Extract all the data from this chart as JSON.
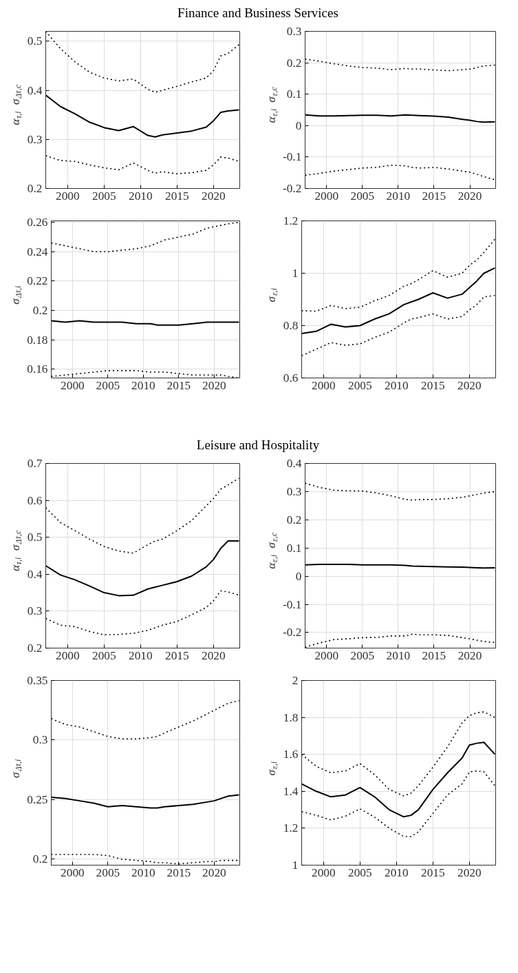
{
  "chart_data": [
    {
      "type": "line",
      "title": "Finance and Business Services",
      "ylabel": "α$_{τ,i}$σ$_{Δτ,c}$",
      "x": [
        1997,
        1999,
        2001,
        2003,
        2005,
        2007,
        2009,
        2011,
        2012,
        2013,
        2015,
        2017,
        2019,
        2020,
        2021,
        2022,
        2023.5
      ],
      "xlim": [
        1997,
        2023.6
      ],
      "xticks": [
        2000,
        2005,
        2010,
        2015,
        2020
      ],
      "ylim": [
        0.2,
        0.52
      ],
      "yticks": [
        0.2,
        0.3,
        0.4,
        0.5
      ],
      "grid": true,
      "series": [
        {
          "color": "#000000",
          "line_style": "dotted",
          "values": [
            0.52,
            0.485,
            0.458,
            0.437,
            0.425,
            0.419,
            0.423,
            0.402,
            0.396,
            0.4,
            0.408,
            0.417,
            0.425,
            0.44,
            0.47,
            0.475,
            0.493
          ]
        },
        {
          "color": "#000000",
          "line_style": "solid",
          "values": [
            0.39,
            0.367,
            0.352,
            0.335,
            0.324,
            0.318,
            0.326,
            0.308,
            0.305,
            0.309,
            0.313,
            0.317,
            0.325,
            0.338,
            0.355,
            0.358,
            0.36
          ]
        },
        {
          "color": "#000000",
          "line_style": "dotted",
          "values": [
            0.267,
            0.257,
            0.255,
            0.248,
            0.242,
            0.238,
            0.252,
            0.237,
            0.231,
            0.234,
            0.23,
            0.232,
            0.237,
            0.248,
            0.264,
            0.262,
            0.255
          ]
        }
      ]
    },
    {
      "type": "line",
      "ylabel": "α$_{ε,i}$σ$_{ε,c}$",
      "x": [
        1997,
        1999,
        2001,
        2003,
        2005,
        2007,
        2009,
        2011,
        2012,
        2013,
        2015,
        2017,
        2019,
        2020,
        2021,
        2022,
        2023.5
      ],
      "xlim": [
        1997,
        2023.6
      ],
      "xticks": [
        2000,
        2005,
        2010,
        2015,
        2020
      ],
      "ylim": [
        -0.2,
        0.3
      ],
      "yticks": [
        -0.2,
        -0.1,
        0,
        0.1,
        0.2,
        0.3
      ],
      "grid": true,
      "series": [
        {
          "color": "#000000",
          "line_style": "dotted",
          "values": [
            0.212,
            0.205,
            0.197,
            0.19,
            0.185,
            0.183,
            0.178,
            0.182,
            0.18,
            0.18,
            0.177,
            0.175,
            0.178,
            0.18,
            0.185,
            0.19,
            0.193
          ]
        },
        {
          "color": "#000000",
          "line_style": "solid",
          "values": [
            0.034,
            0.031,
            0.031,
            0.032,
            0.033,
            0.033,
            0.031,
            0.034,
            0.033,
            0.032,
            0.03,
            0.027,
            0.02,
            0.017,
            0.013,
            0.011,
            0.012
          ]
        },
        {
          "color": "#000000",
          "line_style": "dotted",
          "values": [
            -0.158,
            -0.152,
            -0.145,
            -0.14,
            -0.135,
            -0.133,
            -0.126,
            -0.128,
            -0.133,
            -0.135,
            -0.133,
            -0.138,
            -0.145,
            -0.148,
            -0.155,
            -0.163,
            -0.172
          ]
        }
      ]
    },
    {
      "type": "line",
      "ylabel": "σ$_{Δτ,i}$",
      "x": [
        1997,
        1999,
        2001,
        2003,
        2005,
        2007,
        2009,
        2011,
        2012,
        2013,
        2015,
        2017,
        2019,
        2020,
        2021,
        2022,
        2023.5
      ],
      "xlim": [
        1997,
        2023.6
      ],
      "xticks": [
        2000,
        2005,
        2010,
        2015,
        2020
      ],
      "ylim": [
        0.154,
        0.261
      ],
      "yticks": [
        0.16,
        0.18,
        0.2,
        0.22,
        0.24,
        0.26
      ],
      "grid": true,
      "series": [
        {
          "color": "#000000",
          "line_style": "dotted",
          "values": [
            0.246,
            0.244,
            0.242,
            0.24,
            0.24,
            0.241,
            0.242,
            0.244,
            0.246,
            0.248,
            0.25,
            0.252,
            0.256,
            0.257,
            0.258,
            0.259,
            0.26
          ]
        },
        {
          "color": "#000000",
          "line_style": "solid",
          "values": [
            0.193,
            0.192,
            0.193,
            0.192,
            0.192,
            0.192,
            0.191,
            0.191,
            0.19,
            0.19,
            0.19,
            0.191,
            0.192,
            0.192,
            0.192,
            0.192,
            0.192
          ]
        },
        {
          "color": "#000000",
          "line_style": "dotted",
          "values": [
            0.155,
            0.156,
            0.157,
            0.158,
            0.159,
            0.159,
            0.159,
            0.158,
            0.158,
            0.158,
            0.157,
            0.156,
            0.156,
            0.156,
            0.156,
            0.155,
            0.154
          ]
        }
      ]
    },
    {
      "type": "line",
      "ylabel": "σ$_{ε,i}$",
      "x": [
        1997,
        1999,
        2001,
        2003,
        2005,
        2007,
        2009,
        2011,
        2012,
        2013,
        2015,
        2017,
        2019,
        2020,
        2021,
        2022,
        2023.5
      ],
      "xlim": [
        1997,
        2023.6
      ],
      "xticks": [
        2000,
        2005,
        2010,
        2015,
        2020
      ],
      "ylim": [
        0.6,
        1.2
      ],
      "yticks": [
        0.6,
        0.8,
        1,
        1.2
      ],
      "grid": true,
      "series": [
        {
          "color": "#000000",
          "line_style": "dotted",
          "values": [
            0.857,
            0.855,
            0.877,
            0.865,
            0.87,
            0.895,
            0.915,
            0.95,
            0.96,
            0.975,
            1.01,
            0.985,
            1.0,
            1.03,
            1.05,
            1.08,
            1.13
          ]
        },
        {
          "color": "#000000",
          "line_style": "solid",
          "values": [
            0.77,
            0.778,
            0.805,
            0.795,
            0.8,
            0.825,
            0.845,
            0.88,
            0.89,
            0.9,
            0.925,
            0.905,
            0.92,
            0.945,
            0.97,
            1.0,
            1.02
          ]
        },
        {
          "color": "#000000",
          "line_style": "dotted",
          "values": [
            0.685,
            0.71,
            0.735,
            0.725,
            0.73,
            0.755,
            0.775,
            0.81,
            0.825,
            0.83,
            0.845,
            0.825,
            0.835,
            0.86,
            0.88,
            0.91,
            0.915
          ]
        }
      ]
    },
    {
      "type": "line",
      "title": "Leisure and Hospitality",
      "ylabel": "α$_{τ,i}$σ$_{Δτ,c}$",
      "x": [
        1997,
        1999,
        2001,
        2003,
        2005,
        2007,
        2009,
        2011,
        2012,
        2013,
        2015,
        2017,
        2019,
        2020,
        2021,
        2022,
        2023.5
      ],
      "xlim": [
        1997,
        2023.6
      ],
      "xticks": [
        2000,
        2005,
        2010,
        2015,
        2020
      ],
      "ylim": [
        0.2,
        0.7
      ],
      "yticks": [
        0.2,
        0.3,
        0.4,
        0.5,
        0.6,
        0.7
      ],
      "grid": true,
      "series": [
        {
          "color": "#000000",
          "line_style": "dotted",
          "values": [
            0.58,
            0.54,
            0.518,
            0.495,
            0.475,
            0.463,
            0.457,
            0.48,
            0.49,
            0.495,
            0.518,
            0.545,
            0.585,
            0.605,
            0.63,
            0.642,
            0.66
          ]
        },
        {
          "color": "#000000",
          "line_style": "solid",
          "values": [
            0.423,
            0.398,
            0.385,
            0.368,
            0.35,
            0.342,
            0.343,
            0.36,
            0.365,
            0.37,
            0.38,
            0.395,
            0.42,
            0.44,
            0.47,
            0.49,
            0.49
          ]
        },
        {
          "color": "#000000",
          "line_style": "dotted",
          "values": [
            0.28,
            0.262,
            0.258,
            0.245,
            0.236,
            0.237,
            0.24,
            0.248,
            0.255,
            0.262,
            0.272,
            0.29,
            0.31,
            0.328,
            0.355,
            0.352,
            0.343
          ]
        }
      ]
    },
    {
      "type": "line",
      "ylabel": "α$_{ε,i}$σ$_{ε,c}$",
      "x": [
        1997,
        1999,
        2001,
        2003,
        2005,
        2007,
        2009,
        2011,
        2012,
        2013,
        2015,
        2017,
        2019,
        2020,
        2021,
        2022,
        2023.5
      ],
      "xlim": [
        1997,
        2023.6
      ],
      "xticks": [
        2000,
        2005,
        2010,
        2015,
        2020
      ],
      "ylim": [
        -0.255,
        0.4
      ],
      "yticks": [
        -0.2,
        -0.1,
        0,
        0.1,
        0.2,
        0.3,
        0.4
      ],
      "grid": true,
      "series": [
        {
          "color": "#000000",
          "line_style": "dotted",
          "values": [
            0.33,
            0.315,
            0.305,
            0.303,
            0.302,
            0.295,
            0.285,
            0.272,
            0.27,
            0.272,
            0.272,
            0.275,
            0.28,
            0.285,
            0.29,
            0.295,
            0.3
          ]
        },
        {
          "color": "#000000",
          "line_style": "solid",
          "values": [
            0.04,
            0.042,
            0.042,
            0.042,
            0.04,
            0.04,
            0.04,
            0.038,
            0.036,
            0.035,
            0.034,
            0.033,
            0.032,
            0.031,
            0.03,
            0.029,
            0.03
          ]
        },
        {
          "color": "#000000",
          "line_style": "dotted",
          "values": [
            -0.252,
            -0.237,
            -0.225,
            -0.222,
            -0.218,
            -0.217,
            -0.212,
            -0.212,
            -0.205,
            -0.208,
            -0.208,
            -0.21,
            -0.218,
            -0.222,
            -0.227,
            -0.232,
            -0.235
          ]
        }
      ]
    },
    {
      "type": "line",
      "ylabel": "σ$_{Δτ,i}$",
      "x": [
        1997,
        1999,
        2001,
        2003,
        2005,
        2007,
        2009,
        2011,
        2012,
        2013,
        2015,
        2017,
        2019,
        2020,
        2021,
        2022,
        2023.5
      ],
      "xlim": [
        1997,
        2023.6
      ],
      "xticks": [
        2000,
        2005,
        2010,
        2015,
        2020
      ],
      "ylim": [
        0.195,
        0.35
      ],
      "yticks": [
        0.2,
        0.25,
        0.3,
        0.35
      ],
      "grid": true,
      "series": [
        {
          "color": "#000000",
          "line_style": "dotted",
          "values": [
            0.318,
            0.313,
            0.311,
            0.307,
            0.303,
            0.301,
            0.301,
            0.302,
            0.303,
            0.306,
            0.311,
            0.316,
            0.322,
            0.325,
            0.328,
            0.331,
            0.333
          ]
        },
        {
          "color": "#000000",
          "line_style": "solid",
          "values": [
            0.252,
            0.251,
            0.249,
            0.247,
            0.244,
            0.245,
            0.244,
            0.243,
            0.243,
            0.244,
            0.245,
            0.246,
            0.248,
            0.249,
            0.251,
            0.253,
            0.254
          ]
        },
        {
          "color": "#000000",
          "line_style": "dotted",
          "values": [
            0.204,
            0.204,
            0.204,
            0.204,
            0.203,
            0.2,
            0.199,
            0.198,
            0.197,
            0.197,
            0.196,
            0.197,
            0.198,
            0.198,
            0.199,
            0.199,
            0.199
          ]
        }
      ]
    },
    {
      "type": "line",
      "ylabel": "σ$_{ε,i}$",
      "x": [
        1997,
        1999,
        2001,
        2003,
        2005,
        2007,
        2009,
        2011,
        2012,
        2013,
        2015,
        2017,
        2019,
        2020,
        2021,
        2022,
        2023.5
      ],
      "xlim": [
        1997,
        2023.6
      ],
      "xticks": [
        2000,
        2005,
        2010,
        2015,
        2020
      ],
      "ylim": [
        1,
        2
      ],
      "yticks": [
        1,
        1.2,
        1.4,
        1.6,
        1.8,
        2
      ],
      "grid": true,
      "series": [
        {
          "color": "#000000",
          "line_style": "dotted",
          "values": [
            1.6,
            1.535,
            1.5,
            1.51,
            1.55,
            1.49,
            1.41,
            1.375,
            1.39,
            1.43,
            1.53,
            1.64,
            1.77,
            1.81,
            1.825,
            1.83,
            1.8
          ]
        },
        {
          "color": "#000000",
          "line_style": "solid",
          "values": [
            1.44,
            1.4,
            1.37,
            1.38,
            1.42,
            1.37,
            1.3,
            1.262,
            1.27,
            1.3,
            1.41,
            1.5,
            1.58,
            1.65,
            1.66,
            1.665,
            1.6
          ]
        },
        {
          "color": "#000000",
          "line_style": "dotted",
          "values": [
            1.29,
            1.27,
            1.245,
            1.265,
            1.305,
            1.26,
            1.2,
            1.155,
            1.155,
            1.18,
            1.28,
            1.38,
            1.44,
            1.505,
            1.51,
            1.505,
            1.43
          ]
        }
      ]
    }
  ]
}
